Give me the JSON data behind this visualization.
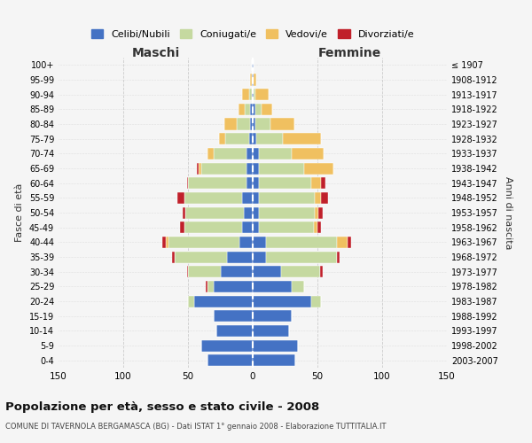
{
  "age_groups": [
    "0-4",
    "5-9",
    "10-14",
    "15-19",
    "20-24",
    "25-29",
    "30-34",
    "35-39",
    "40-44",
    "45-49",
    "50-54",
    "55-59",
    "60-64",
    "65-69",
    "70-74",
    "75-79",
    "80-84",
    "85-89",
    "90-94",
    "95-99",
    "100+"
  ],
  "birth_years": [
    "2003-2007",
    "1998-2002",
    "1993-1997",
    "1988-1992",
    "1983-1987",
    "1978-1982",
    "1973-1977",
    "1968-1972",
    "1963-1967",
    "1958-1962",
    "1953-1957",
    "1948-1952",
    "1943-1947",
    "1938-1942",
    "1933-1937",
    "1928-1932",
    "1923-1927",
    "1918-1922",
    "1913-1917",
    "1908-1912",
    "≤ 1907"
  ],
  "maschi": {
    "celibi": [
      35,
      40,
      28,
      30,
      45,
      30,
      25,
      20,
      10,
      8,
      7,
      8,
      5,
      5,
      5,
      3,
      2,
      2,
      1,
      1,
      1
    ],
    "coniugati": [
      0,
      0,
      0,
      0,
      5,
      5,
      25,
      40,
      55,
      45,
      45,
      45,
      45,
      35,
      25,
      18,
      10,
      4,
      2,
      0,
      0
    ],
    "vedovi": [
      0,
      0,
      0,
      0,
      0,
      0,
      0,
      0,
      2,
      0,
      0,
      0,
      0,
      2,
      5,
      5,
      10,
      5,
      5,
      1,
      0
    ],
    "divorziati": [
      0,
      0,
      0,
      0,
      0,
      1,
      1,
      2,
      3,
      3,
      2,
      5,
      1,
      1,
      0,
      0,
      0,
      0,
      0,
      0,
      0
    ]
  },
  "femmine": {
    "nubili": [
      33,
      35,
      28,
      30,
      45,
      30,
      22,
      10,
      10,
      5,
      5,
      5,
      5,
      5,
      5,
      3,
      2,
      2,
      1,
      1,
      1
    ],
    "coniugate": [
      0,
      0,
      0,
      0,
      8,
      10,
      30,
      55,
      55,
      42,
      43,
      43,
      40,
      35,
      25,
      20,
      12,
      5,
      1,
      0,
      0
    ],
    "vedove": [
      0,
      0,
      0,
      0,
      0,
      0,
      0,
      0,
      8,
      3,
      3,
      5,
      8,
      22,
      25,
      30,
      18,
      8,
      10,
      2,
      0
    ],
    "divorziate": [
      0,
      0,
      0,
      0,
      0,
      0,
      2,
      2,
      3,
      3,
      3,
      5,
      3,
      0,
      0,
      0,
      0,
      0,
      0,
      0,
      0
    ]
  },
  "colors": {
    "celibi": "#4472C4",
    "coniugati": "#c5d9a0",
    "vedovi": "#f0c060",
    "divorziati": "#c0202a"
  },
  "legend_labels": [
    "Celibi/Nubili",
    "Coniugati/e",
    "Vedovi/e",
    "Divorziati/e"
  ],
  "title": "Popolazione per età, sesso e stato civile - 2008",
  "subtitle": "COMUNE DI TAVERNOLA BERGAMASCA (BG) - Dati ISTAT 1° gennaio 2008 - Elaborazione TUTTITALIA.IT",
  "xlabel_left": "Maschi",
  "xlabel_right": "Femmine",
  "ylabel_left": "Fasce di età",
  "ylabel_right": "Anni di nascita",
  "xlim": 150,
  "background_color": "#f5f5f5",
  "grid_color": "#cccccc"
}
